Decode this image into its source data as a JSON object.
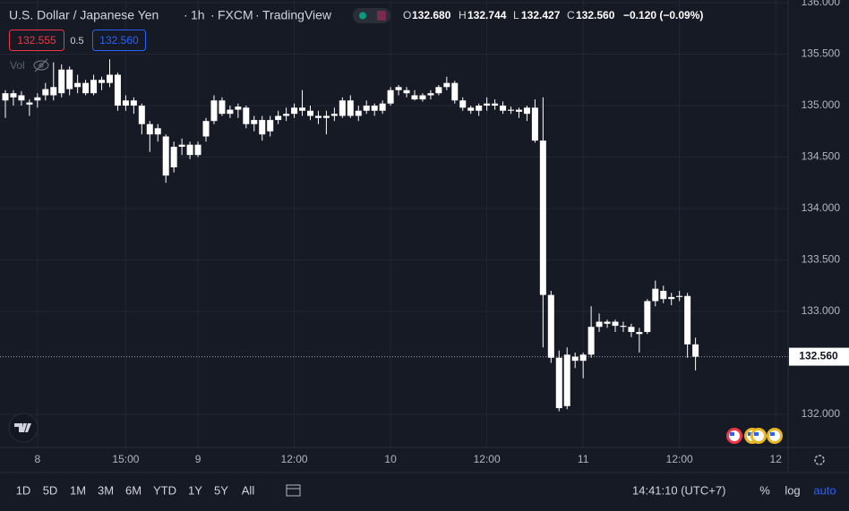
{
  "chart_data": {
    "type": "candlestick",
    "symbol": "U.S. Dollar / Japanese Yen",
    "interval": "1h",
    "exchange": "FXCM",
    "source": "TradingView",
    "legend": {
      "open_key": "O",
      "open": "132.680",
      "high_key": "H",
      "high": "132.744",
      "low_key": "L",
      "low": "132.427",
      "close_key": "C",
      "close": "132.560",
      "change": "−0.120 (−0.09%)"
    },
    "sell_price": "132.555",
    "spread": "0.5",
    "buy_price": "132.560",
    "volume_label": "Vol",
    "color": "#ffffff",
    "x": [
      0,
      1,
      2,
      3,
      4,
      5,
      6,
      7,
      8,
      9,
      10,
      11,
      12,
      13,
      14,
      15,
      16,
      17,
      18,
      19,
      20,
      21,
      22,
      23,
      24,
      25,
      26,
      27,
      28,
      29,
      30,
      31,
      32,
      33,
      34,
      35,
      36,
      37,
      38,
      39,
      40,
      41,
      42,
      43,
      44,
      45,
      46,
      47,
      48,
      49,
      50,
      51,
      52,
      53,
      54,
      55,
      56,
      57,
      58,
      59,
      60,
      61,
      62,
      63,
      64,
      65,
      66,
      67,
      68,
      69,
      70,
      71,
      72,
      73,
      74,
      75,
      76,
      77,
      78,
      79,
      80,
      81,
      82,
      83,
      84,
      85,
      86
    ],
    "open": [
      135.12,
      135.08,
      135.05,
      135.03,
      135.05,
      135.1,
      135.1,
      135.12,
      135.35,
      135.18,
      135.22,
      135.12,
      135.25,
      135.22,
      135.3,
      135.0,
      135.05,
      135.0,
      134.82,
      134.72,
      134.7,
      134.4,
      134.6,
      134.62,
      134.52,
      134.7,
      134.85,
      135.05,
      134.92,
      134.96,
      134.98,
      134.82,
      134.86,
      134.75,
      134.86,
      134.9,
      134.92,
      134.98,
      134.95,
      134.9,
      134.88,
      134.9,
      134.9,
      135.05,
      134.9,
      134.95,
      135.0,
      134.95,
      135.02,
      135.15,
      135.15,
      135.1,
      135.06,
      135.1,
      135.12,
      135.18,
      135.22,
      135.05,
      134.98,
      134.95,
      135.0,
      135.02,
      135.0,
      134.95,
      134.96,
      134.98,
      134.98,
      134.66,
      133.16,
      132.55,
      132.08,
      132.56,
      132.52,
      132.58,
      132.85,
      132.88,
      132.9,
      132.86,
      132.85,
      132.8,
      132.8,
      133.1,
      133.2,
      133.12,
      133.14,
      133.15,
      132.68
    ],
    "high": [
      135.15,
      135.15,
      135.14,
      135.06,
      135.12,
      135.22,
      135.42,
      135.4,
      135.38,
      135.3,
      135.25,
      135.3,
      135.28,
      135.45,
      135.32,
      135.1,
      135.08,
      135.02,
      134.85,
      134.82,
      134.72,
      134.65,
      134.68,
      134.65,
      134.65,
      134.88,
      135.1,
      135.08,
      135.0,
      135.02,
      135.0,
      134.9,
      134.9,
      134.9,
      134.95,
      134.98,
      135.02,
      135.15,
      135.0,
      134.95,
      134.95,
      134.98,
      135.08,
      135.1,
      135.0,
      135.05,
      135.02,
      135.05,
      135.18,
      135.2,
      135.18,
      135.15,
      135.12,
      135.15,
      135.2,
      135.28,
      135.24,
      135.08,
      135.0,
      135.02,
      135.08,
      135.06,
      135.04,
      134.99,
      134.98,
      135.0,
      135.06,
      135.08,
      133.2,
      132.62,
      132.65,
      132.6,
      132.6,
      133.05,
      132.98,
      132.92,
      132.92,
      132.9,
      132.88,
      132.84,
      133.12,
      133.3,
      133.25,
      133.18,
      133.2,
      133.18,
      132.744
    ],
    "low": [
      134.88,
      135.0,
      135.0,
      134.9,
      134.98,
      135.05,
      135.05,
      135.08,
      135.1,
      135.12,
      135.1,
      135.1,
      135.15,
      135.18,
      134.95,
      134.95,
      134.92,
      134.72,
      134.55,
      134.65,
      134.25,
      134.35,
      134.52,
      134.48,
      134.5,
      134.65,
      134.82,
      134.9,
      134.88,
      134.88,
      134.78,
      134.75,
      134.66,
      134.7,
      134.82,
      134.85,
      134.88,
      134.9,
      134.86,
      134.82,
      134.72,
      134.85,
      134.88,
      134.88,
      134.85,
      134.92,
      134.9,
      134.92,
      135.0,
      135.1,
      135.08,
      135.05,
      135.04,
      135.06,
      135.1,
      135.15,
      135.02,
      134.95,
      134.92,
      134.9,
      134.95,
      134.96,
      134.92,
      134.92,
      134.88,
      134.85,
      134.64,
      132.65,
      132.5,
      132.03,
      132.05,
      132.45,
      132.35,
      132.55,
      132.8,
      132.84,
      132.8,
      132.8,
      132.75,
      132.6,
      132.78,
      133.05,
      133.08,
      133.06,
      133.1,
      132.55,
      132.427
    ],
    "close": [
      135.05,
      135.12,
      135.1,
      135.01,
      135.08,
      135.16,
      135.18,
      135.35,
      135.16,
      135.22,
      135.12,
      135.25,
      135.22,
      135.3,
      135.0,
      135.05,
      135.0,
      134.82,
      134.72,
      134.78,
      134.32,
      134.6,
      134.62,
      134.52,
      134.62,
      134.85,
      135.05,
      134.92,
      134.96,
      134.99,
      134.82,
      134.86,
      134.72,
      134.86,
      134.9,
      134.92,
      134.98,
      134.95,
      134.9,
      134.88,
      134.9,
      134.92,
      135.05,
      134.9,
      134.95,
      135.0,
      134.95,
      135.02,
      135.15,
      135.18,
      135.12,
      135.06,
      135.1,
      135.12,
      135.18,
      135.22,
      135.05,
      134.98,
      134.95,
      135.0,
      135.02,
      135.0,
      134.95,
      134.96,
      134.94,
      134.92,
      134.66,
      133.16,
      132.55,
      132.06,
      132.58,
      132.52,
      132.58,
      132.85,
      132.9,
      132.9,
      132.86,
      132.85,
      132.8,
      132.78,
      133.1,
      133.22,
      133.12,
      133.14,
      133.15,
      132.68,
      132.56
    ],
    "last_price": {
      "value": 132.56,
      "label": "132.560"
    },
    "ylim": [
      131.678,
      136.026
    ],
    "yticks": [
      {
        "value": 132,
        "label": "132.000"
      },
      {
        "value": 133,
        "label": "133.000"
      },
      {
        "value": 133.5,
        "label": "133.500"
      },
      {
        "value": 134,
        "label": "134.000"
      },
      {
        "value": 134.5,
        "label": "134.500"
      },
      {
        "value": 135,
        "label": "135.000"
      },
      {
        "value": 135.5,
        "label": "135.500"
      },
      {
        "value": 136,
        "label": "136.000"
      }
    ],
    "xlim": [
      -0.67,
      97.54
    ],
    "xticks": [
      {
        "value": 4,
        "label": "8"
      },
      {
        "value": 15,
        "label": "15:00"
      },
      {
        "value": 24,
        "label": "9"
      },
      {
        "value": 36,
        "label": "12:00"
      },
      {
        "value": 48,
        "label": "10"
      },
      {
        "value": 60,
        "label": "12:00"
      },
      {
        "value": 72,
        "label": "11"
      },
      {
        "value": 84,
        "label": "12:00"
      },
      {
        "value": 96,
        "label": "12"
      }
    ],
    "grid": true,
    "ranges": [
      "1D",
      "5D",
      "1M",
      "3M",
      "6M",
      "YTD",
      "1Y",
      "5Y",
      "All"
    ],
    "clock": "14:41:10 (UTC+7)",
    "percent": "%",
    "log": "log",
    "auto": "auto"
  }
}
